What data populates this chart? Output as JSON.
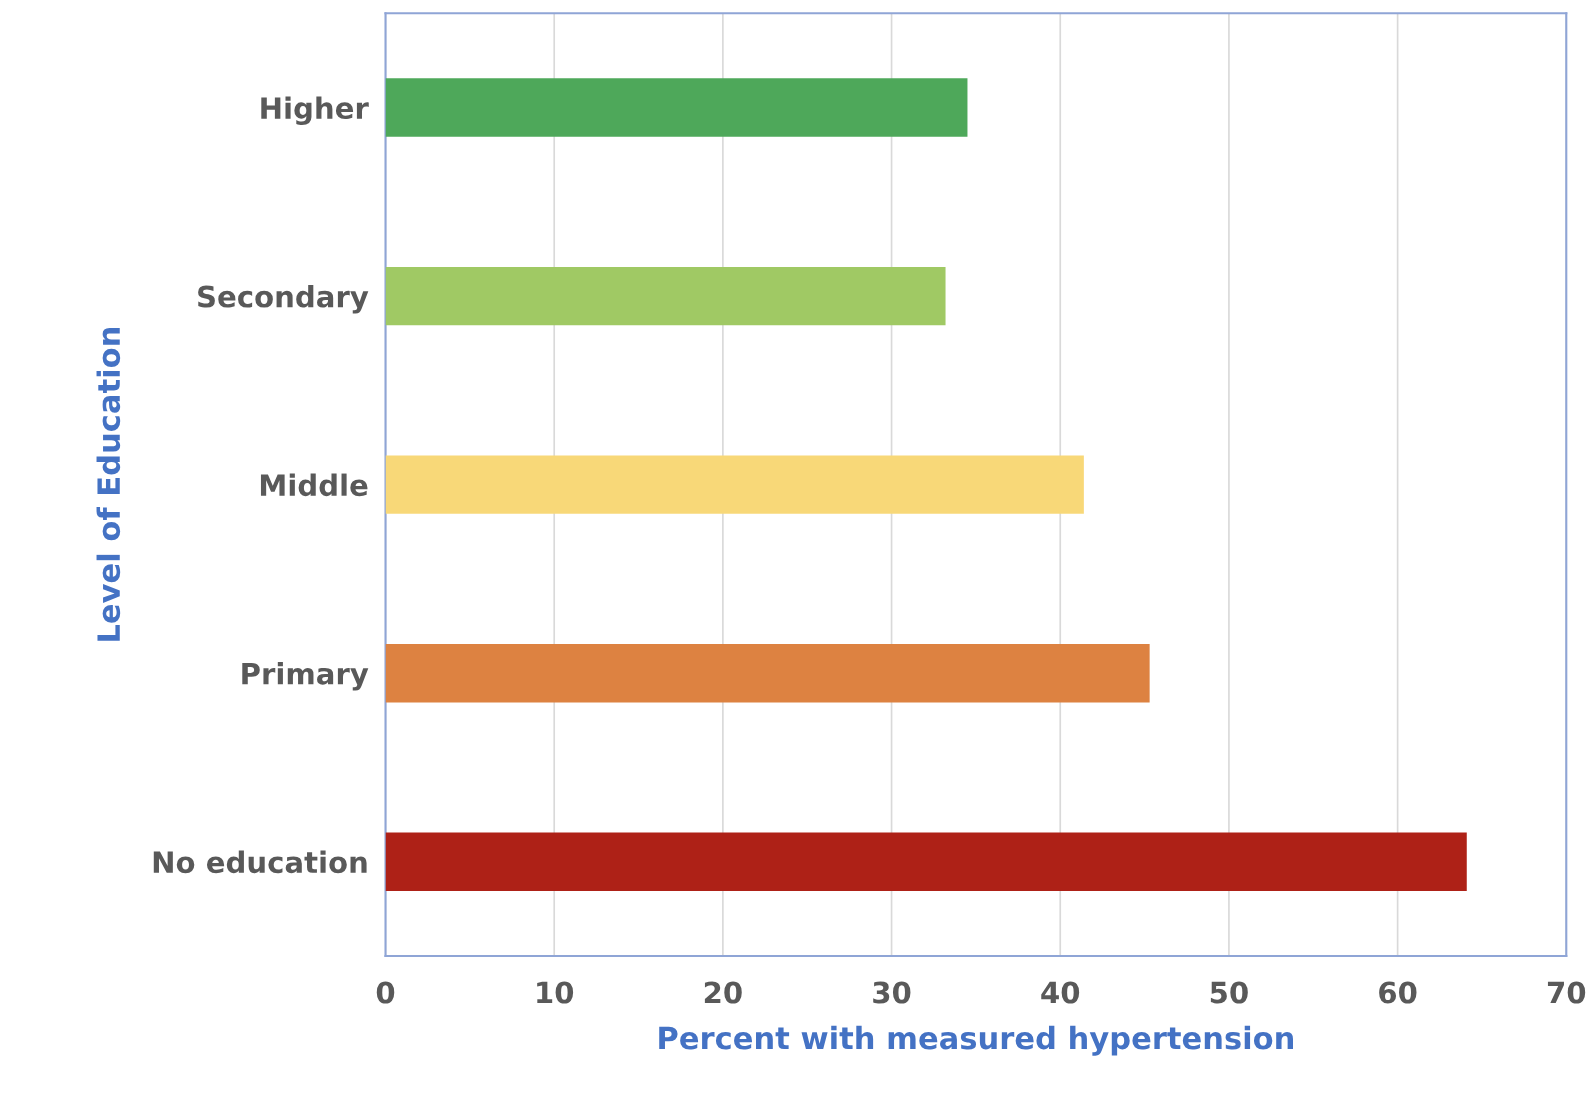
{
  "chart_data": {
    "type": "bar",
    "orientation": "horizontal",
    "xlabel": "Percent with measured hypertension",
    "ylabel": "Level of Education",
    "categories": [
      "Higher",
      "Secondary",
      "Middle",
      "Primary",
      "No education"
    ],
    "values": [
      34.5,
      33.2,
      41.4,
      45.3,
      64.1
    ],
    "colors": [
      "#4ea85a",
      "#a0c964",
      "#f8d878",
      "#dd8241",
      "#ae2117"
    ],
    "xlim": [
      0,
      70
    ],
    "xticks": [
      0,
      10,
      20,
      30,
      40,
      50,
      60,
      70
    ],
    "grid": "x",
    "legend": false
  }
}
